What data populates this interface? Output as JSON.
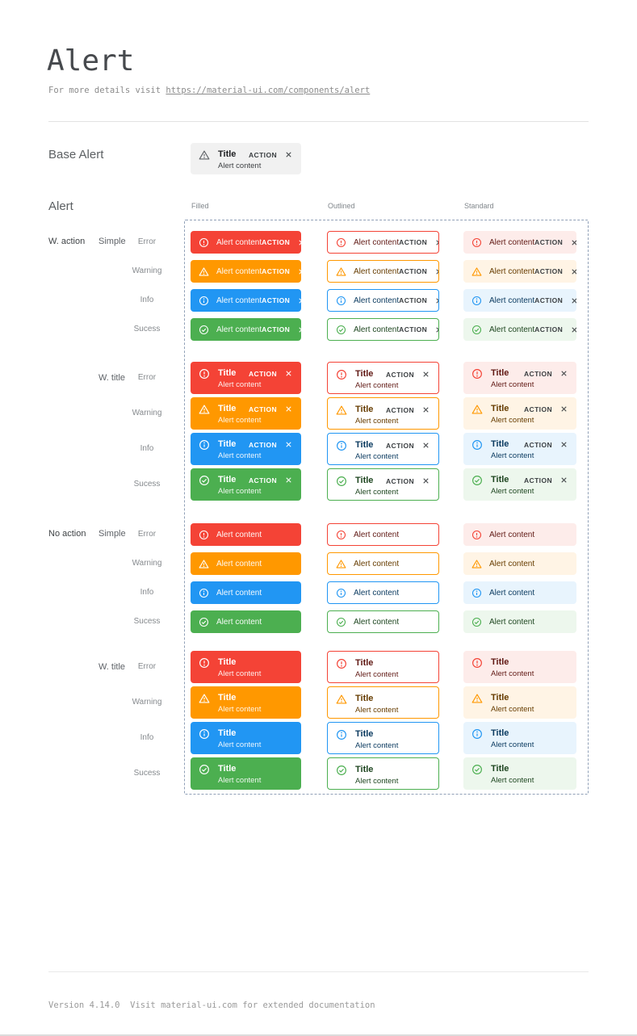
{
  "header": {
    "title": "Alert",
    "subtitle_prefix": "For more details visit ",
    "subtitle_link": "https://material-ui.com/components/alert"
  },
  "base_alert": {
    "section_label": "Base Alert",
    "title": "Title",
    "content": "Alert content",
    "action_label": "ACTION"
  },
  "grid": {
    "section_label": "Alert",
    "columns": [
      "Filled",
      "Outlined",
      "Standard"
    ],
    "row_groups": [
      {
        "action_group": "W. action",
        "variant": "Simple",
        "has_action": true,
        "has_title": false
      },
      {
        "action_group": "",
        "variant": "W. title",
        "has_action": true,
        "has_title": true
      },
      {
        "action_group": "No action",
        "variant": "Simple",
        "has_action": false,
        "has_title": false
      },
      {
        "action_group": "",
        "variant": "W. title",
        "has_action": false,
        "has_title": true
      }
    ],
    "severities": [
      {
        "label": "Error",
        "icon": "error-icon",
        "main": "#f44336",
        "standard_bg": "#fdecea",
        "dark_text": "#611a15"
      },
      {
        "label": "Warning",
        "icon": "warning-icon",
        "main": "#ff9800",
        "standard_bg": "#fff4e5",
        "dark_text": "#663c00"
      },
      {
        "label": "Info",
        "icon": "info-icon",
        "main": "#2196f3",
        "standard_bg": "#e8f4fd",
        "dark_text": "#0d3c61"
      },
      {
        "label": "Sucess",
        "icon": "success-icon",
        "main": "#4caf50",
        "standard_bg": "#edf7ed",
        "dark_text": "#1e4620"
      }
    ],
    "alert_title": "Title",
    "alert_content": "Alert content",
    "action_label": "ACTION"
  },
  "footer": {
    "text": "Version 4.14.0  Visit material-ui.com for extended documentation"
  },
  "colors": {
    "page_bg": "#ffffff",
    "dashed_border": "#90a0b7",
    "base_alert_bg": "#f1f1f1",
    "filled_text": "#ffffff",
    "action_text_dark": "#3c4043",
    "base_icon": "#5f6368"
  }
}
